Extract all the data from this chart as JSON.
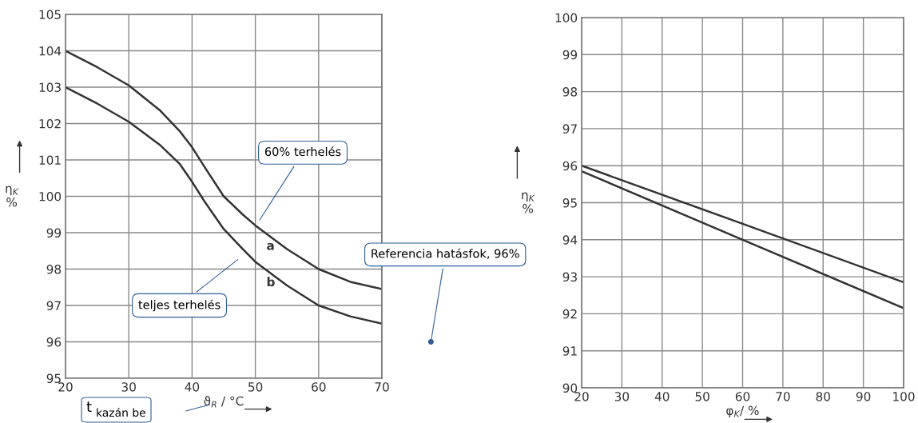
{
  "chart_data": [
    {
      "type": "line",
      "xlabel": "ϑ$_{R}$ / °C",
      "ylabel": "η$_{K}$\n%",
      "xlim": [
        20,
        70
      ],
      "ylim": [
        95,
        105
      ],
      "xticks": [
        20,
        30,
        40,
        50,
        60,
        70
      ],
      "yticks": [
        95,
        96,
        97,
        98,
        99,
        100,
        101,
        102,
        103,
        104,
        105
      ],
      "grid": true,
      "x": [
        20,
        25,
        30,
        35,
        38,
        40,
        42,
        45,
        48,
        50,
        55,
        60,
        65,
        70
      ],
      "series": [
        {
          "name": "a",
          "color": "#333333",
          "values": [
            104,
            103.55,
            103.05,
            102.35,
            101.8,
            101.35,
            100.8,
            100.0,
            99.5,
            99.2,
            98.55,
            98.0,
            97.65,
            97.45
          ]
        },
        {
          "name": "b",
          "color": "#333333",
          "values": [
            103,
            102.55,
            102.05,
            101.4,
            100.9,
            100.4,
            99.85,
            99.1,
            98.55,
            98.2,
            97.55,
            97.0,
            96.7,
            96.5
          ]
        }
      ],
      "annotations": [
        {
          "text": "60% terhelés",
          "x": 50.5,
          "y": 99.3
        },
        "teljes terhelés",
        "Referencia hatásfok, 96%",
        "t $_{kazán be}$"
      ]
    },
    {
      "type": "line",
      "xlabel": "φ$_{K}$/ %",
      "ylabel": "η$_{K}$\n%",
      "xlim": [
        20,
        100
      ],
      "ylim": [
        90,
        100
      ],
      "xticks": [
        20,
        30,
        40,
        50,
        60,
        70,
        80,
        90,
        100
      ],
      "yticks": [
        90,
        91,
        92,
        93,
        94,
        95,
        96,
        97,
        98,
        99,
        100
      ],
      "grid": true,
      "x": [
        20,
        60,
        100
      ],
      "series": [
        {
          "color": "#333333",
          "values": [
            96.0,
            94.43,
            92.85
          ]
        },
        {
          "color": "#333333",
          "values": [
            95.85,
            94.0,
            92.15
          ]
        }
      ]
    }
  ]
}
